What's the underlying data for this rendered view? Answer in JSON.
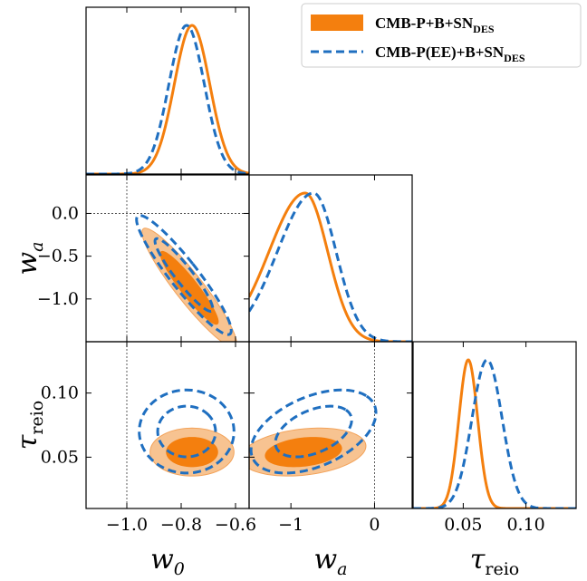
{
  "chart_data": {
    "type": "triangle",
    "parameters": [
      {
        "key": "w0",
        "label": "w",
        "sub": "0",
        "range": [
          -1.15,
          -0.55
        ],
        "ticks": [
          -1.0,
          -0.8,
          -0.6
        ],
        "tick_labels": [
          "−1.0",
          "−0.8",
          "−0.6"
        ],
        "ref": -1.0
      },
      {
        "key": "wa",
        "label": "w",
        "sub": "a",
        "range": [
          -1.5,
          0.45
        ],
        "ticks": [
          -1.0,
          0.0
        ],
        "tick_labels": [
          "−1",
          "0"
        ],
        "y_ticks": [
          0.0,
          -0.5,
          -1.0
        ],
        "y_tick_labels": [
          "0.0",
          "−0.5",
          "−1.0"
        ],
        "ref": 0.0
      },
      {
        "key": "tau",
        "label": "τ",
        "sub": "reio",
        "range": [
          0.01,
          0.14
        ],
        "ticks": [
          0.05,
          0.1
        ],
        "tick_labels": [
          "0.05",
          "0.10"
        ],
        "y_ticks": [
          0.1,
          0.05
        ],
        "y_tick_labels": [
          "0.10",
          "0.05"
        ]
      }
    ],
    "series": [
      {
        "name": "CMB-P+B+SN",
        "name_sub": "DES",
        "color": "#f47f0e",
        "fill_inner": "#f47f0e",
        "fill_outer": "#f7c391",
        "style": "solid",
        "marginals": {
          "w0": {
            "mean": -0.76,
            "sigma": 0.065
          },
          "wa": {
            "mean": -0.83,
            "sigma": 0.27,
            "left_skew": 1.6
          },
          "tau": {
            "mean": 0.054,
            "sigma": 0.0075
          }
        },
        "contours": {
          "wa_w0": {
            "cx": -0.77,
            "cy": -0.87,
            "sx": 0.07,
            "sy": 0.28,
            "rho": -0.93
          },
          "tau_w0": {
            "cx": -0.76,
            "cy": 0.054,
            "sx": 0.062,
            "sy": 0.0075,
            "rho": 0.0
          },
          "tau_wa": {
            "cx": -0.85,
            "cy": 0.054,
            "sx": 0.3,
            "sy": 0.0075,
            "rho": 0.25
          }
        }
      },
      {
        "name": "CMB-P(EE)+B+SN",
        "name_sub": "DES",
        "color": "#1f6fc0",
        "style": "dashed",
        "marginals": {
          "w0": {
            "mean": -0.78,
            "sigma": 0.065
          },
          "wa": {
            "mean": -0.73,
            "sigma": 0.27,
            "left_skew": 1.6
          },
          "tau": {
            "mean": 0.069,
            "sigma": 0.012
          }
        },
        "contours": {
          "wa_w0": {
            "cx": -0.79,
            "cy": -0.72,
            "sx": 0.07,
            "sy": 0.28,
            "rho": -0.93
          },
          "tau_w0": {
            "cx": -0.78,
            "cy": 0.07,
            "sx": 0.07,
            "sy": 0.013,
            "rho": 0.0
          },
          "tau_wa": {
            "cx": -0.73,
            "cy": 0.07,
            "sx": 0.3,
            "sy": 0.013,
            "rho": 0.45
          }
        }
      }
    ],
    "legend": {
      "position": "top-right"
    }
  }
}
